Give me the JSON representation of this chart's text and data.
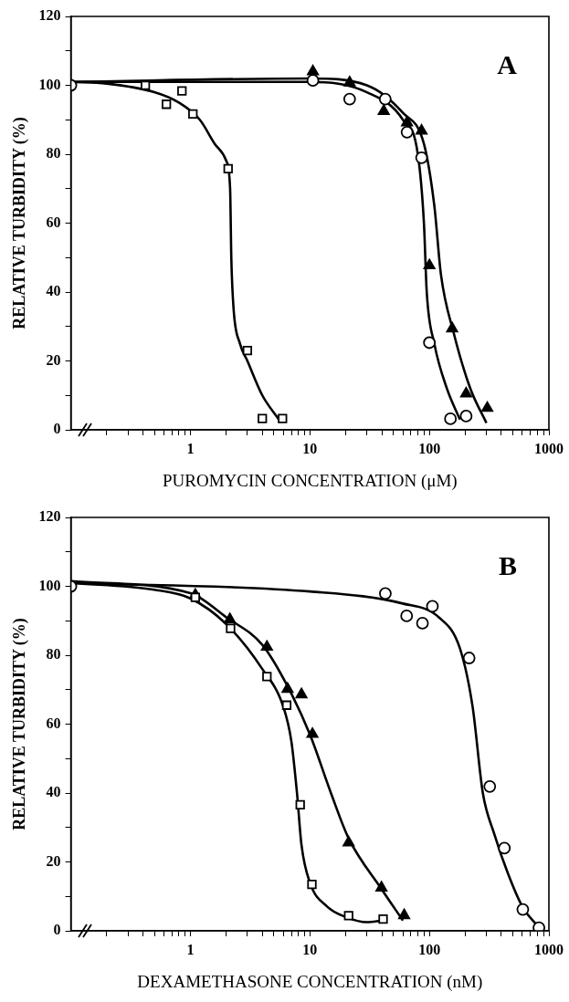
{
  "chart_data": [
    {
      "type": "scatter",
      "xlabel": "PUROMYCIN CONCENTRATION (μM)",
      "ylabel": "RELATIVE TURBIDITY (%)",
      "annotations": [
        "A"
      ],
      "log": "x",
      "grid": false,
      "legend": false,
      "xlim": [
        0.1,
        1000
      ],
      "ylim": [
        0,
        120
      ],
      "xticks": [
        {
          "value": 0.2,
          "label": null
        },
        {
          "value": 0.3,
          "label": null
        },
        {
          "value": 0.4,
          "label": null
        },
        {
          "value": 0.5,
          "label": null
        },
        {
          "value": 0.6,
          "label": null
        },
        {
          "value": 0.7,
          "label": null
        },
        {
          "value": 0.8,
          "label": null
        },
        {
          "value": 0.9,
          "label": null
        },
        1,
        {
          "value": 2,
          "label": null
        },
        {
          "value": 3,
          "label": null
        },
        {
          "value": 4,
          "label": null
        },
        {
          "value": 5,
          "label": null
        },
        {
          "value": 6,
          "label": null
        },
        {
          "value": 7,
          "label": null
        },
        {
          "value": 8,
          "label": null
        },
        {
          "value": 9,
          "label": null
        },
        10,
        {
          "value": 20,
          "label": null
        },
        {
          "value": 30,
          "label": null
        },
        {
          "value": 40,
          "label": null
        },
        {
          "value": 50,
          "label": null
        },
        {
          "value": 60,
          "label": null
        },
        {
          "value": 70,
          "label": null
        },
        {
          "value": 80,
          "label": null
        },
        {
          "value": 90,
          "label": null
        },
        100,
        {
          "value": 200,
          "label": null
        },
        {
          "value": 300,
          "label": null
        },
        {
          "value": 400,
          "label": null
        },
        {
          "value": 500,
          "label": null
        },
        {
          "value": 600,
          "label": null
        },
        {
          "value": 700,
          "label": null
        },
        {
          "value": 800,
          "label": null
        },
        {
          "value": 900,
          "label": null
        },
        1000
      ],
      "yticks": [
        0,
        {
          "value": 10,
          "label": null
        },
        20,
        {
          "value": 30,
          "label": null
        },
        40,
        {
          "value": 50,
          "label": null
        },
        60,
        {
          "value": 70,
          "label": null
        },
        80,
        {
          "value": 90,
          "label": null
        },
        100,
        {
          "value": 110,
          "label": null
        },
        120
      ],
      "series": [
        {
          "type": "line",
          "marker": "none",
          "color": "#000000",
          "x": [
            0.1,
            0.2,
            0.5,
            0.8,
            1.2,
            1.6,
            2.0,
            2.15,
            2.2,
            2.3,
            2.6,
            3.0,
            4.0,
            5.5
          ],
          "values": [
            101,
            100.5,
            98,
            95,
            90,
            83,
            78,
            70,
            50,
            35,
            25,
            20,
            10,
            3
          ]
        },
        {
          "type": "line",
          "marker": "none",
          "color": "#000000",
          "x": [
            0.1,
            1,
            10,
            30,
            60,
            80,
            90,
            95,
            110,
            140,
            180
          ],
          "values": [
            101,
            101,
            101,
            98,
            90,
            80,
            60,
            40,
            25,
            12,
            3
          ]
        },
        {
          "type": "line",
          "marker": "none",
          "color": "#000000",
          "x": [
            0.1,
            10,
            30,
            60,
            90,
            110,
            125,
            160,
            220,
            300
          ],
          "values": [
            101,
            102,
            100,
            92,
            83,
            65,
            45,
            28,
            12,
            2
          ]
        },
        {
          "type": "scatter",
          "marker": "square",
          "color": "#000000",
          "x": [
            0.42,
            0.63,
            0.85,
            1.05,
            2.07,
            3.0,
            4.0,
            5.9
          ],
          "values": [
            100,
            94.5,
            98.4,
            91.7,
            75.8,
            23,
            3.3,
            3.3
          ]
        },
        {
          "type": "scatter",
          "marker": "triangle",
          "color": "#000000",
          "x": [
            10.6,
            21.5,
            41.5,
            65,
            86,
            100,
            155,
            203,
            305
          ],
          "values": [
            104,
            100.8,
            92.5,
            89.2,
            86.8,
            47.7,
            29.4,
            10.5,
            6.3
          ]
        },
        {
          "type": "scatter",
          "marker": "circle",
          "color": "#000000",
          "x": [
            0.1,
            10.6,
            21.5,
            42.7,
            65,
            86,
            100,
            150,
            203
          ],
          "values": [
            100,
            101.4,
            96,
            96,
            86.4,
            79,
            25.3,
            3.2,
            4
          ]
        }
      ]
    },
    {
      "type": "scatter",
      "xlabel": "DEXAMETHASONE CONCENTRATION (nM)",
      "ylabel": "RELATIVE TURBIDITY (%)",
      "annotations": [
        "B"
      ],
      "log": "x",
      "grid": false,
      "legend": false,
      "xlim": [
        0.1,
        1000
      ],
      "ylim": [
        0,
        120
      ],
      "xticks": [
        {
          "value": 0.2,
          "label": null
        },
        {
          "value": 0.3,
          "label": null
        },
        {
          "value": 0.4,
          "label": null
        },
        {
          "value": 0.5,
          "label": null
        },
        {
          "value": 0.6,
          "label": null
        },
        {
          "value": 0.7,
          "label": null
        },
        {
          "value": 0.8,
          "label": null
        },
        {
          "value": 0.9,
          "label": null
        },
        1,
        {
          "value": 2,
          "label": null
        },
        {
          "value": 3,
          "label": null
        },
        {
          "value": 4,
          "label": null
        },
        {
          "value": 5,
          "label": null
        },
        {
          "value": 6,
          "label": null
        },
        {
          "value": 7,
          "label": null
        },
        {
          "value": 8,
          "label": null
        },
        {
          "value": 9,
          "label": null
        },
        10,
        {
          "value": 20,
          "label": null
        },
        {
          "value": 30,
          "label": null
        },
        {
          "value": 40,
          "label": null
        },
        {
          "value": 50,
          "label": null
        },
        {
          "value": 60,
          "label": null
        },
        {
          "value": 70,
          "label": null
        },
        {
          "value": 80,
          "label": null
        },
        {
          "value": 90,
          "label": null
        },
        100,
        {
          "value": 200,
          "label": null
        },
        {
          "value": 300,
          "label": null
        },
        {
          "value": 400,
          "label": null
        },
        {
          "value": 500,
          "label": null
        },
        {
          "value": 600,
          "label": null
        },
        {
          "value": 700,
          "label": null
        },
        {
          "value": 800,
          "label": null
        },
        {
          "value": 900,
          "label": null
        },
        1000
      ],
      "yticks": [
        0,
        {
          "value": 10,
          "label": null
        },
        20,
        {
          "value": 30,
          "label": null
        },
        40,
        {
          "value": 50,
          "label": null
        },
        60,
        {
          "value": 70,
          "label": null
        },
        80,
        {
          "value": 90,
          "label": null
        },
        100,
        {
          "value": 110,
          "label": null
        },
        120
      ],
      "series": [
        {
          "type": "line",
          "marker": "none",
          "color": "#000000",
          "x": [
            0.1,
            0.5,
            1,
            2,
            4,
            6,
            7,
            7.8,
            8.5,
            10,
            14,
            20,
            30,
            40
          ],
          "values": [
            101,
            99,
            96.5,
            89,
            76,
            65,
            55,
            40,
            25,
            14,
            7,
            4,
            2.5,
            3
          ]
        },
        {
          "type": "line",
          "marker": "none",
          "color": "#000000",
          "x": [
            0.1,
            1,
            2,
            4,
            6.5,
            10,
            15,
            21,
            40,
            60
          ],
          "values": [
            101.5,
            98,
            91,
            83,
            71,
            57,
            40,
            27,
            12,
            3
          ]
        },
        {
          "type": "line",
          "marker": "none",
          "color": "#000000",
          "x": [
            0.1,
            10,
            60,
            120,
            180,
            230,
            280,
            350,
            450,
            600,
            800
          ],
          "values": [
            101,
            98.5,
            95,
            91,
            82,
            65,
            40,
            28,
            17,
            7,
            1.5
          ]
        },
        {
          "type": "scatter",
          "marker": "square",
          "color": "#000000",
          "x": [
            1.1,
            2.17,
            4.37,
            6.4,
            8.3,
            10.4,
            21.1,
            41
          ],
          "values": [
            96.8,
            87.8,
            73.8,
            65.5,
            36.6,
            13.5,
            4.4,
            3.4
          ]
        },
        {
          "type": "scatter",
          "marker": "triangle",
          "color": "#000000",
          "x": [
            1.1,
            2.14,
            4.37,
            6.5,
            8.5,
            10.5,
            21.1,
            39.7,
            61.5
          ],
          "values": [
            97.5,
            90.4,
            82.4,
            70.2,
            68.6,
            57.1,
            25.6,
            12.5,
            4.5
          ]
        },
        {
          "type": "scatter",
          "marker": "circle",
          "color": "#000000",
          "x": [
            0.1,
            42.8,
            64.5,
            87.5,
            106,
            215,
            320,
            424,
            605,
            825
          ],
          "values": [
            100,
            97.9,
            91.4,
            89.3,
            94.2,
            79.2,
            41.9,
            24,
            6.2,
            0.9
          ]
        }
      ]
    }
  ]
}
